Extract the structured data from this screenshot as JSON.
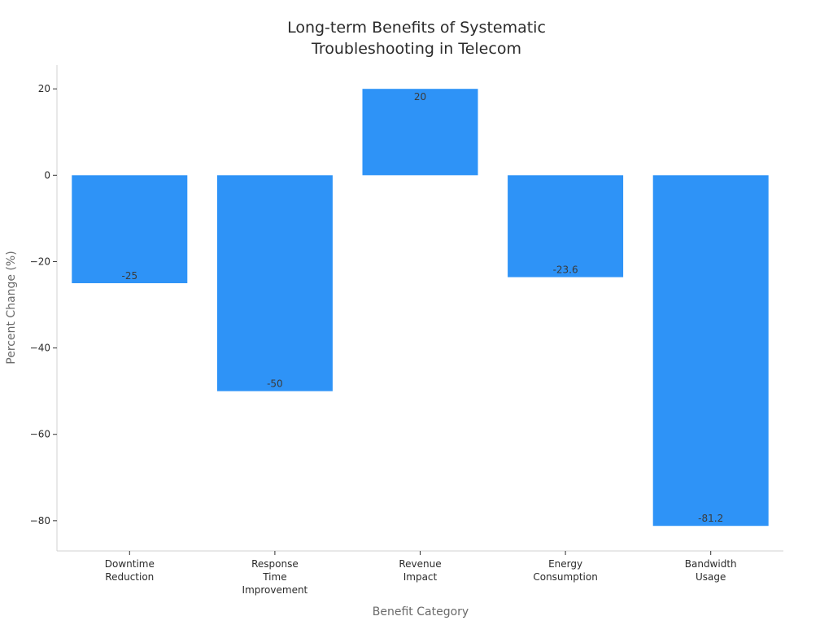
{
  "chart_data": {
    "type": "bar",
    "title": [
      "Long-term Benefits of Systematic",
      "Troubleshooting in Telecom"
    ],
    "xlabel": "Benefit Category",
    "ylabel": "Percent Change (%)",
    "categories": [
      [
        "Downtime",
        "Reduction"
      ],
      [
        "Response",
        "Time",
        "Improvement"
      ],
      [
        "Revenue",
        "Impact"
      ],
      [
        "Energy",
        "Consumption"
      ],
      [
        "Bandwidth",
        "Usage"
      ]
    ],
    "values": [
      -25,
      -50,
      20,
      -23.6,
      -81.2
    ],
    "data_labels": [
      "-25",
      "-50",
      "20",
      "-23.6",
      "-81.2"
    ],
    "ylim": [
      -87,
      25.5
    ],
    "yticks": [
      20,
      0,
      -20,
      -40,
      -60,
      -80
    ],
    "ytick_labels": [
      "20",
      "0",
      "−20",
      "−40",
      "−60",
      "−80"
    ],
    "bar_color": "#2e93f7",
    "grid": false,
    "legend": "none"
  }
}
